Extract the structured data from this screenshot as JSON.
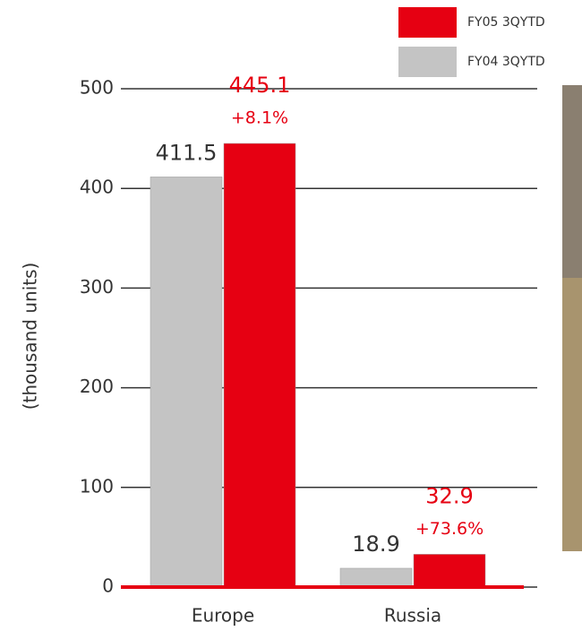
{
  "chart_data": {
    "type": "bar",
    "y_label": "(thousand units)",
    "categories": [
      "Europe",
      "Russia"
    ],
    "series": [
      {
        "name": "FY05 3QYTD",
        "color": "#e60012",
        "values": [
          445.1,
          32.9
        ],
        "changes": [
          "+8.1%",
          "+73.6%"
        ]
      },
      {
        "name": "FY04 3QYTD",
        "color": "#c4c4c4",
        "values": [
          411.5,
          18.9
        ]
      }
    ],
    "ylim": [
      0,
      500
    ],
    "yticks": [
      0,
      100,
      200,
      300,
      400,
      500
    ],
    "grid": true
  }
}
